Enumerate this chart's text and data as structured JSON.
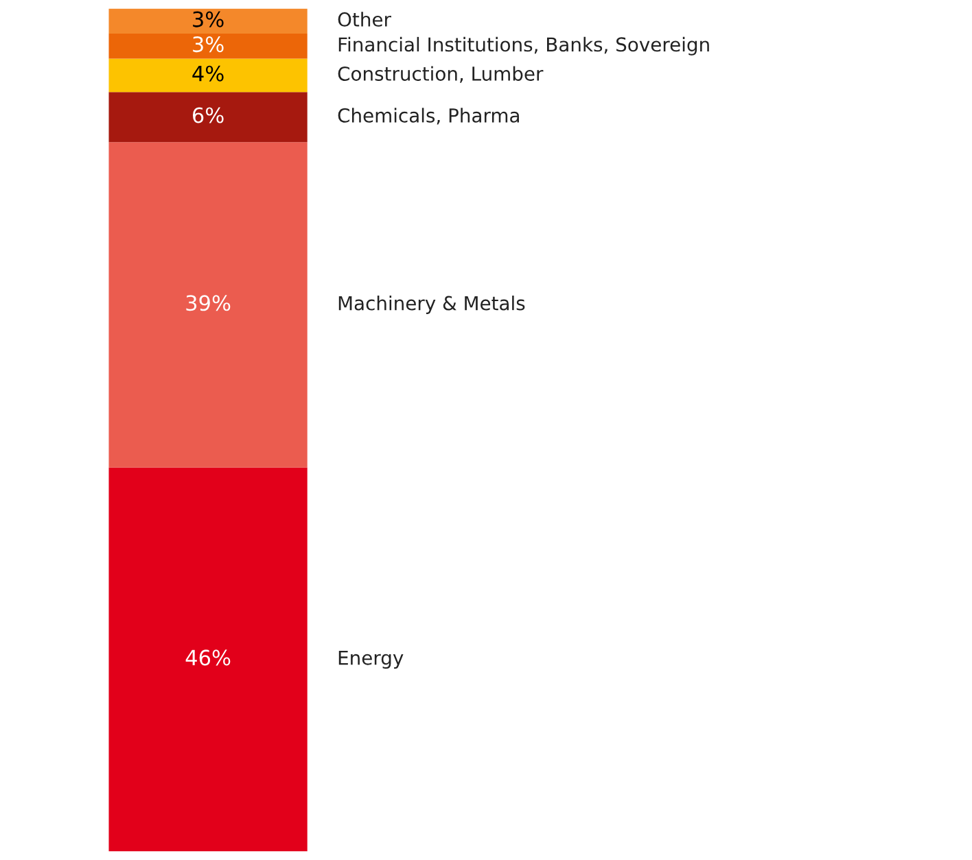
{
  "chart_data": {
    "type": "bar",
    "stacked": true,
    "categories": [
      null
    ],
    "tick_labels": false,
    "series": [
      {
        "name": "Energy",
        "color": "#e2001a",
        "values": [
          46
        ],
        "value_labels": [
          "46%"
        ]
      },
      {
        "name": "Machinery & Metals",
        "color": "#eb5c4f",
        "values": [
          39
        ],
        "value_labels": [
          "39%"
        ]
      },
      {
        "name": "Chemicals, Pharma",
        "color": "#a6190f",
        "values": [
          6
        ],
        "value_labels": [
          "6%"
        ]
      },
      {
        "name": "Construction, Lumber",
        "color": "#fdc300",
        "values": [
          4
        ],
        "value_labels": [
          "4%"
        ]
      },
      {
        "name": "Financial Institutions, Banks, Sovereign",
        "color": "#ec6608",
        "values": [
          3
        ],
        "value_labels": [
          "3%"
        ]
      },
      {
        "name": "Other",
        "color": "#f4882a",
        "values": [
          3
        ],
        "value_labels": [
          "3%"
        ]
      }
    ]
  }
}
